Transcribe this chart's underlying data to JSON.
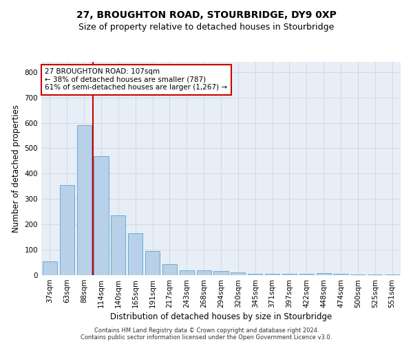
{
  "title": "27, BROUGHTON ROAD, STOURBRIDGE, DY9 0XP",
  "subtitle": "Size of property relative to detached houses in Stourbridge",
  "xlabel": "Distribution of detached houses by size in Stourbridge",
  "ylabel": "Number of detached properties",
  "categories": [
    "37sqm",
    "63sqm",
    "88sqm",
    "114sqm",
    "140sqm",
    "165sqm",
    "191sqm",
    "217sqm",
    "243sqm",
    "268sqm",
    "294sqm",
    "320sqm",
    "345sqm",
    "371sqm",
    "397sqm",
    "422sqm",
    "448sqm",
    "474sqm",
    "500sqm",
    "525sqm",
    "551sqm"
  ],
  "values": [
    55,
    355,
    590,
    470,
    237,
    165,
    95,
    44,
    20,
    20,
    15,
    12,
    5,
    5,
    5,
    5,
    8,
    5,
    3,
    3,
    3
  ],
  "bar_color": "#b8d0e8",
  "bar_edge_color": "#6aaad4",
  "redline_index": 2.5,
  "redline_color": "#cc0000",
  "annotation_line1": "27 BROUGHTON ROAD: 107sqm",
  "annotation_line2": "← 38% of detached houses are smaller (787)",
  "annotation_line3": "61% of semi-detached houses are larger (1,267) →",
  "annotation_box_facecolor": "#ffffff",
  "annotation_box_edgecolor": "#cc0000",
  "footer_line1": "Contains HM Land Registry data © Crown copyright and database right 2024.",
  "footer_line2": "Contains public sector information licensed under the Open Government Licence v3.0.",
  "ylim": [
    0,
    840
  ],
  "yticks": [
    0,
    100,
    200,
    300,
    400,
    500,
    600,
    700,
    800
  ],
  "grid_color": "#cdd8ea",
  "background_color": "#e8eef6",
  "title_fontsize": 10,
  "subtitle_fontsize": 9,
  "xlabel_fontsize": 8.5,
  "ylabel_fontsize": 8.5,
  "tick_fontsize": 7.5,
  "annotation_fontsize": 7.5,
  "footer_fontsize": 6
}
